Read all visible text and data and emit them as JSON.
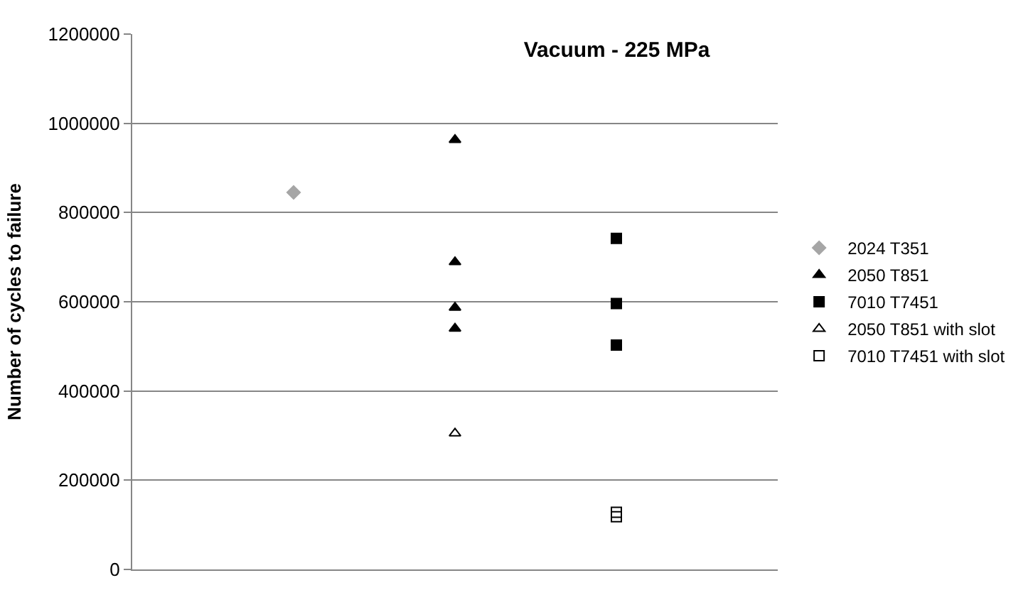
{
  "chart_data": {
    "type": "scatter",
    "title": "Vacuum - 225 MPa",
    "ylabel": "Number of cycles to failure",
    "categories": [
      null,
      null,
      null
    ],
    "series": [
      {
        "name": "2024 T351",
        "color": "#a6a6a6",
        "marker": "diamond",
        "values": [
          845000,
          null,
          null
        ]
      },
      {
        "name": "2050 T851",
        "color": "#000000",
        "marker": "triangle",
        "values": [
          null,
          963000,
          null
        ]
      },
      {
        "color": "#000000",
        "marker": "triangle",
        "values": [
          null,
          689000,
          null
        ]
      },
      {
        "color": "#000000",
        "marker": "triangle",
        "values": [
          null,
          587000,
          null
        ]
      },
      {
        "color": "#000000",
        "marker": "triangle",
        "values": [
          null,
          540000,
          null
        ]
      },
      {
        "name": "7010 T7451",
        "color": "#000000",
        "marker": "square",
        "values": [
          null,
          null,
          742000
        ]
      },
      {
        "color": "#000000",
        "marker": "square",
        "values": [
          null,
          null,
          596000
        ]
      },
      {
        "color": "#000000",
        "marker": "square",
        "values": [
          null,
          null,
          503000
        ]
      },
      {
        "name": "2050 T851 with slot",
        "color": "#000000",
        "marker": "triangle-open",
        "values": [
          null,
          305000,
          null
        ]
      },
      {
        "name": "7010 T7451 with slot",
        "color": "#000000",
        "marker": "square-open",
        "values": [
          null,
          null,
          128000
        ]
      },
      {
        "color": "#000000",
        "marker": "square-open",
        "values": [
          null,
          null,
          118000
        ]
      }
    ],
    "ylim": [
      0,
      1200000
    ],
    "yticks": [
      0,
      200000,
      400000,
      600000,
      800000,
      1000000,
      1200000
    ],
    "grid": "y",
    "legend": "right"
  }
}
